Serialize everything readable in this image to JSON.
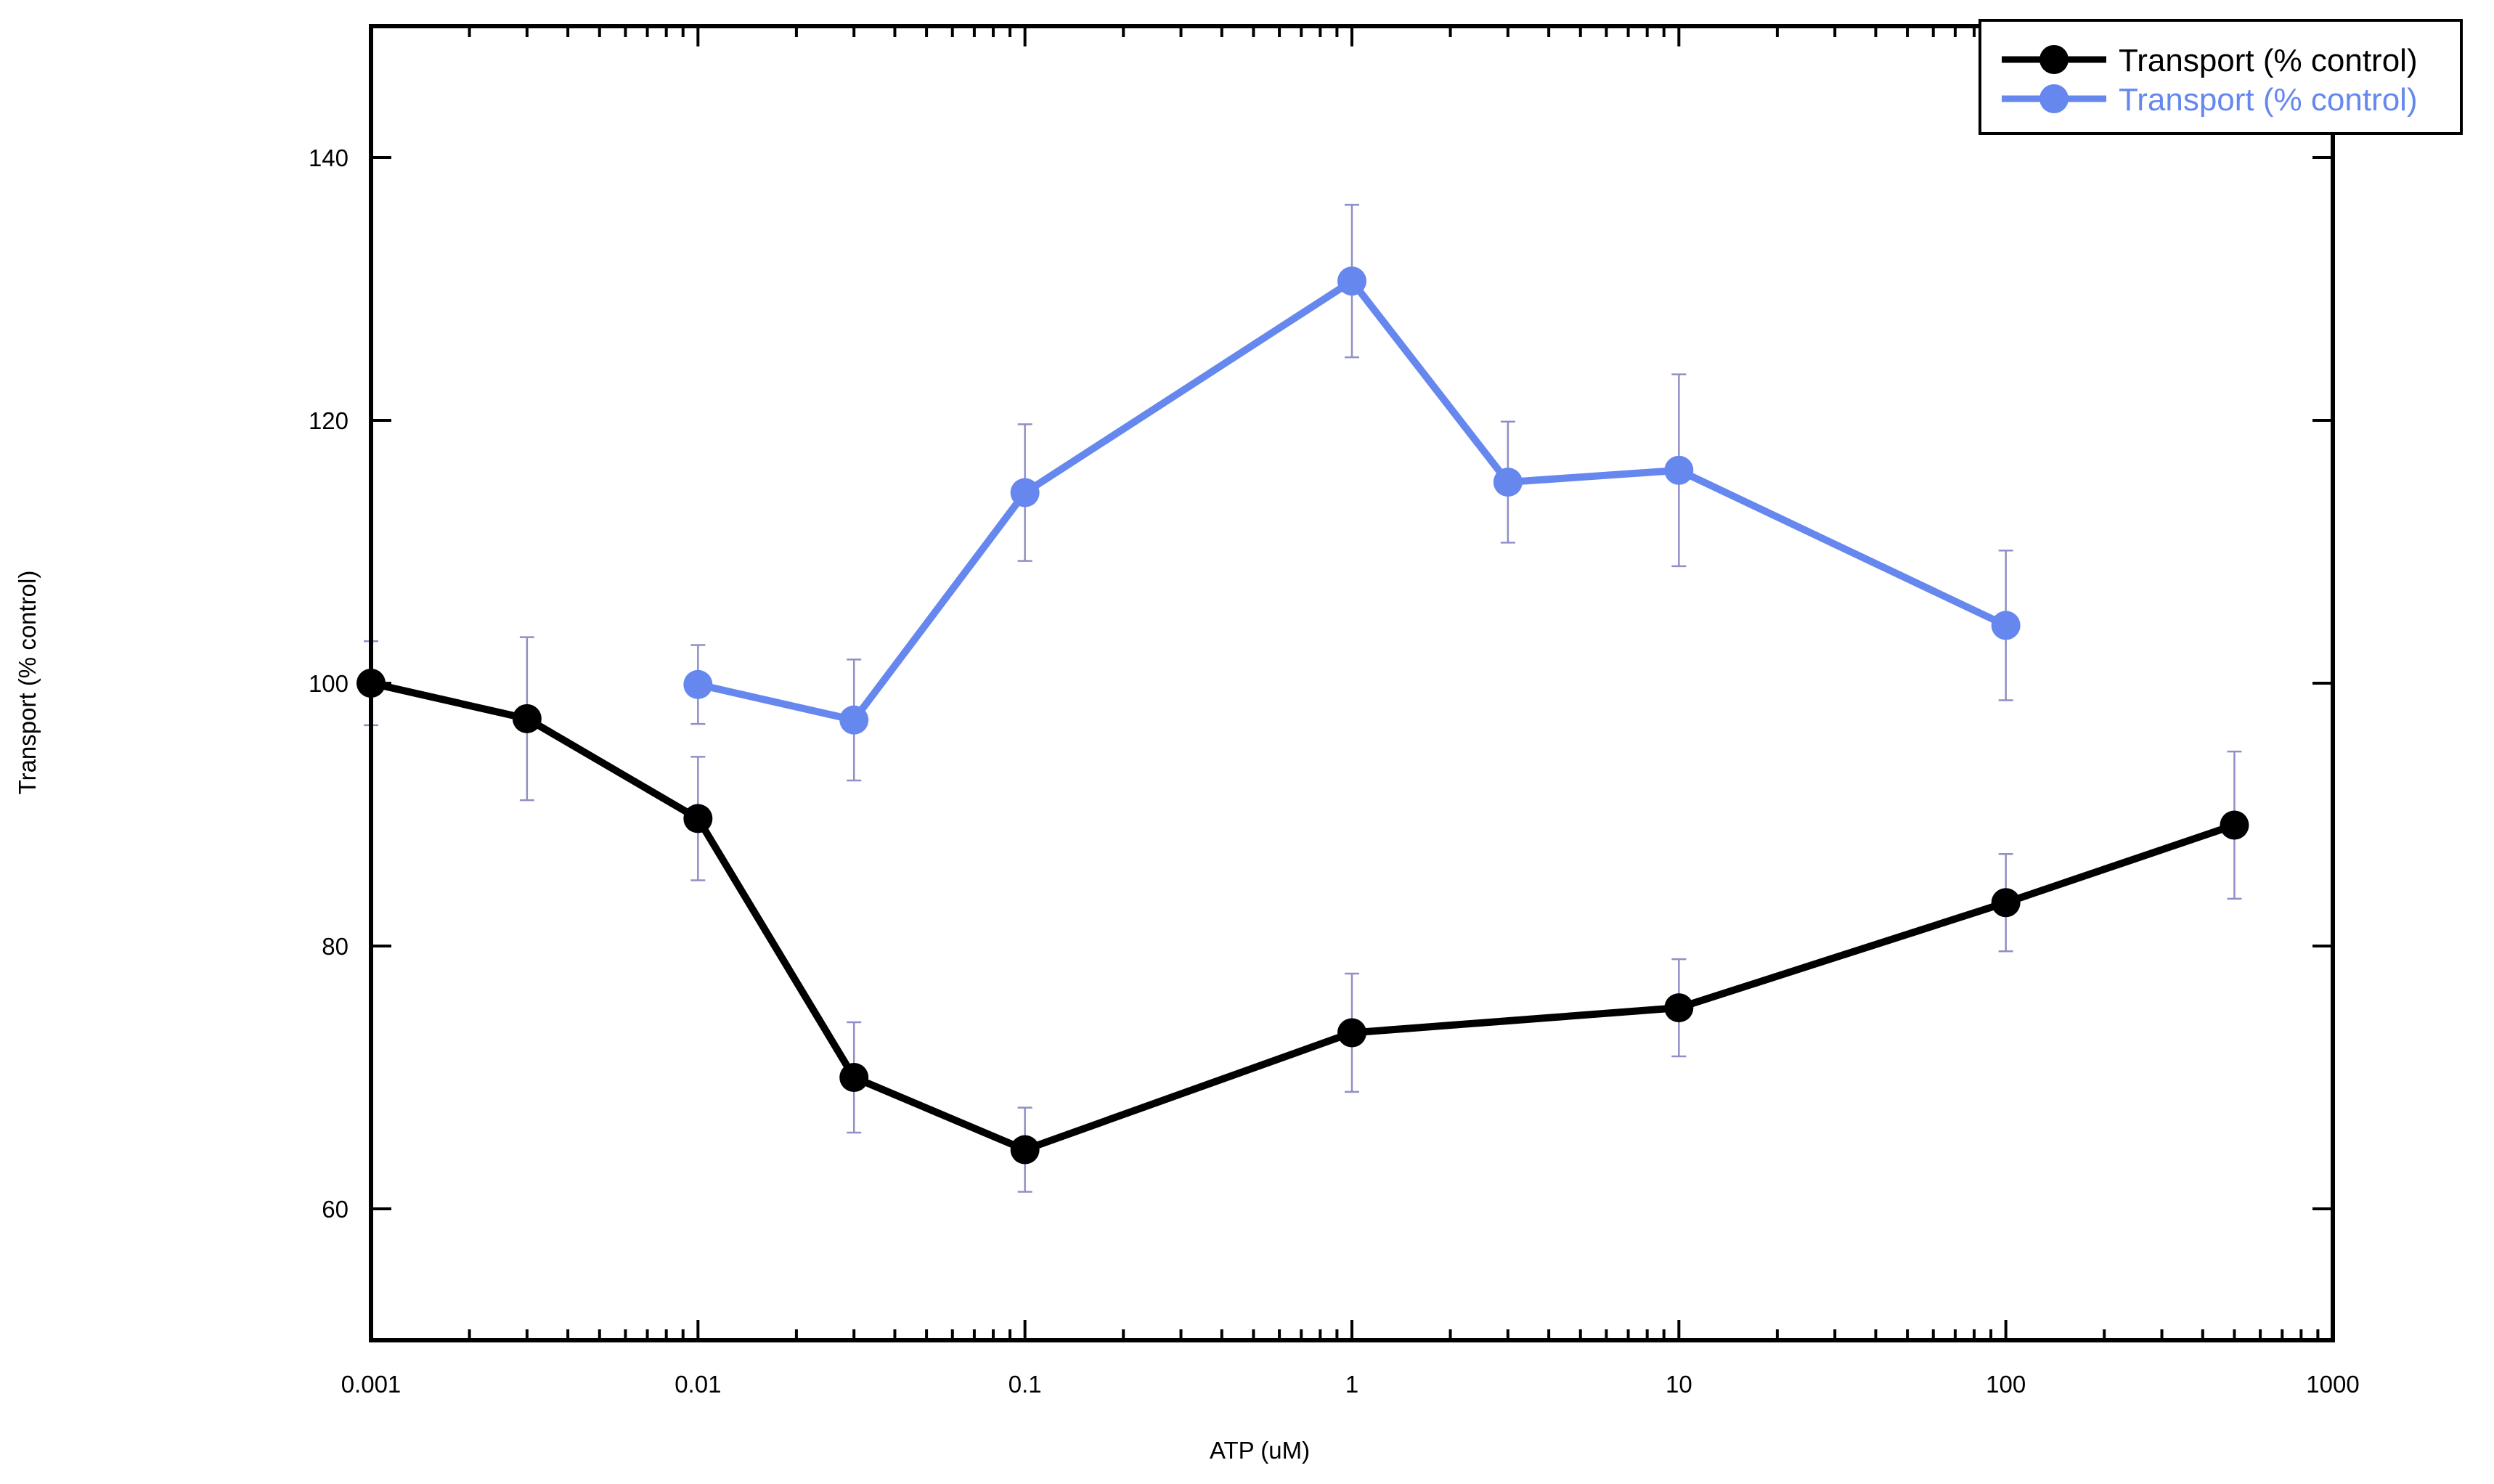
{
  "chart_data": {
    "type": "line",
    "xlabel": "ATP (uM)",
    "ylabel": "Transport (% control)",
    "xscale": "log",
    "xlim": [
      0.001,
      1000
    ],
    "ylim": [
      50,
      150
    ],
    "x_ticks": [
      0.001,
      0.01,
      0.1,
      1,
      10,
      100,
      1000
    ],
    "x_tick_labels": [
      "0.001",
      "0.01",
      "0.1",
      "1",
      "10",
      "100",
      "1000"
    ],
    "y_ticks": [
      60,
      80,
      100,
      120,
      140
    ],
    "y_tick_labels": [
      "60",
      "80",
      "100",
      "120",
      "140"
    ],
    "grid": false,
    "legend_position": "top-right",
    "error_bar_color": "#8f8fc7",
    "series": [
      {
        "name": "Transport (% control)",
        "color": "#000000",
        "x": [
          0.001,
          0.003,
          0.01,
          0.03,
          0.1,
          1,
          10,
          100,
          500
        ],
        "y": [
          100,
          97.3,
          89.7,
          70,
          64.5,
          73.4,
          75.3,
          83.3,
          89.2
        ],
        "error": [
          3.2,
          6.2,
          4.7,
          4.2,
          3.2,
          4.5,
          3.7,
          3.7,
          5.6
        ]
      },
      {
        "name": "Transport (% control)",
        "color": "#6688ee",
        "x": [
          0.01,
          0.03,
          0.1,
          1,
          3,
          10,
          100
        ],
        "y": [
          99.9,
          97.2,
          114.5,
          130.6,
          115.3,
          116.2,
          104.4
        ],
        "error": [
          3.0,
          4.6,
          5.2,
          5.8,
          4.6,
          7.3,
          5.7
        ]
      }
    ]
  }
}
